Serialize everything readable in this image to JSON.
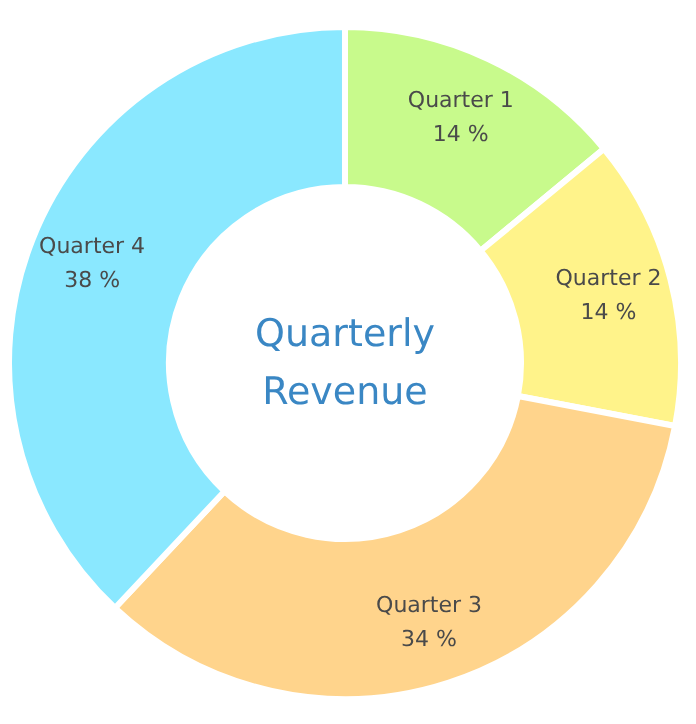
{
  "chart_data": {
    "type": "donut",
    "title": "Quarterly Revenue",
    "categories": [
      "Quarter 1",
      "Quarter 2",
      "Quarter 3",
      "Quarter 4"
    ],
    "values": [
      14,
      14,
      34,
      38
    ],
    "value_labels": [
      "14 %",
      "14 %",
      "34 %",
      "38 %"
    ],
    "colors": [
      "#c8fa8c",
      "#fff38a",
      "#ffd48c",
      "#8ae8ff"
    ],
    "legend": false
  }
}
